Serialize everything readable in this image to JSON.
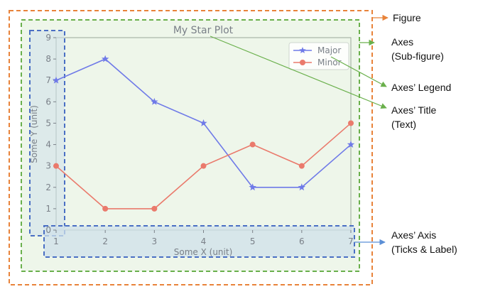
{
  "chart_data": {
    "type": "line",
    "title": "My Star Plot",
    "xlabel": "Some X (unit)",
    "ylabel": "Some Y (unit)",
    "x": [
      1,
      2,
      3,
      4,
      5,
      6,
      7
    ],
    "xlim": [
      1,
      7
    ],
    "ylim": [
      0,
      9
    ],
    "xticks": [
      "1",
      "2",
      "3",
      "4",
      "5",
      "6",
      "7"
    ],
    "yticks": [
      "0",
      "1",
      "2",
      "3",
      "4",
      "5",
      "6",
      "7",
      "8",
      "9"
    ],
    "legend_position": "top-right",
    "series": [
      {
        "name": "Major",
        "marker": "star",
        "color": "#6f7ae8",
        "values": [
          7,
          8,
          6,
          5,
          2,
          2,
          4
        ]
      },
      {
        "name": "Minor",
        "marker": "circle",
        "color": "#ea7a6c",
        "values": [
          3,
          1,
          1,
          3,
          4,
          3,
          5
        ]
      }
    ]
  },
  "annotations": {
    "figure": "Figure",
    "axes_line1": "Axes",
    "axes_line2": "(Sub-figure)",
    "legend": "Axes’ Legend",
    "title_line1": "Axes’ Title",
    "title_line2": "(Text)",
    "axis_line1": "Axes’ Axis",
    "axis_line2": "(Ticks & Label)"
  },
  "colors": {
    "figure": "#e8833a",
    "axes": "#6ab04c",
    "axis": "#4a6fc4",
    "axes_fill": "#eef6ea",
    "axis_fill": "#cfe0ea",
    "frame": "#9aa89a"
  }
}
